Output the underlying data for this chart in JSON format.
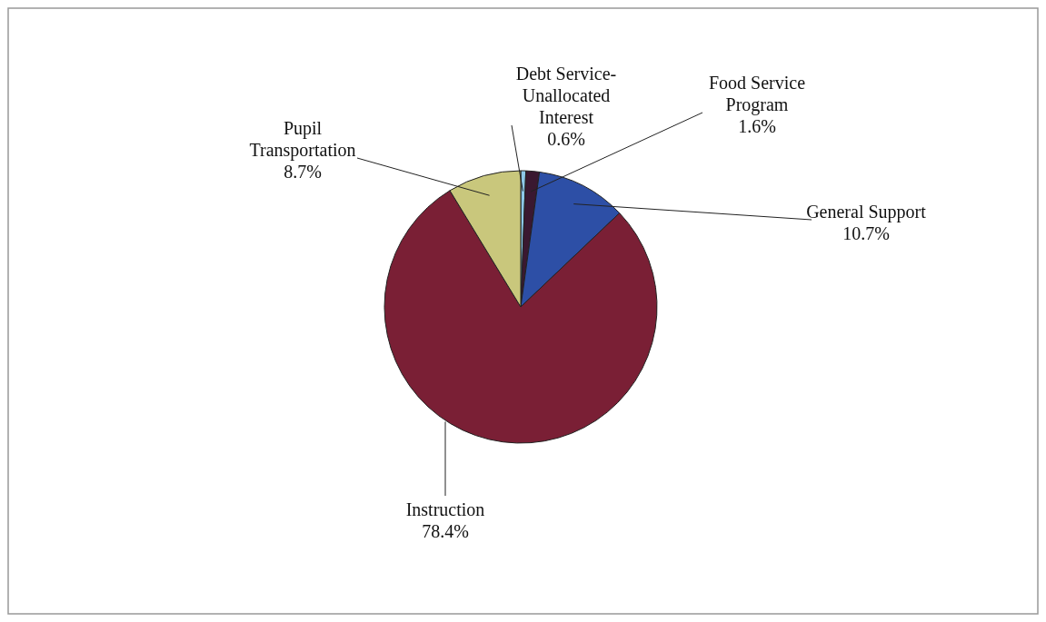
{
  "chart_data": {
    "type": "pie",
    "categories": [
      "Debt Service-Unallocated Interest",
      "Food Service Program",
      "General Support",
      "Instruction",
      "Pupil Transportation"
    ],
    "values": [
      0.6,
      1.6,
      10.7,
      78.4,
      8.7
    ],
    "value_labels": [
      "0.6%",
      "1.6%",
      "10.7%",
      "78.4%",
      "8.7%"
    ],
    "colors": [
      "#8ec8e8",
      "#3a1830",
      "#2d4fa6",
      "#7a1f35",
      "#c9c77c"
    ],
    "legend": false
  }
}
